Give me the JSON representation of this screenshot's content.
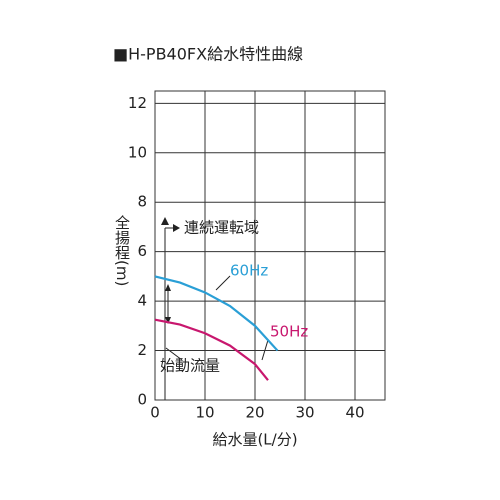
{
  "chart_data": {
    "type": "line",
    "title": "■H-PB40FX給水特性曲線",
    "x_label": "給水量(L/分)",
    "y_label": "全揚程(m)",
    "xlim": [
      0,
      46
    ],
    "xticks": [
      0,
      10,
      20,
      30,
      40
    ],
    "ylim": [
      0,
      12.5
    ],
    "yticks": [
      0,
      2,
      4,
      6,
      8,
      10,
      12
    ],
    "grid": true,
    "series": [
      {
        "name": "60Hz",
        "color": "#2a9fd6",
        "x": [
          0,
          5,
          10,
          15,
          20,
          24.5
        ],
        "values": [
          5.0,
          4.75,
          4.35,
          3.8,
          3.0,
          2.0
        ]
      },
      {
        "name": "50Hz",
        "color": "#c8176e",
        "x": [
          0,
          5,
          10,
          15,
          20,
          22.6
        ],
        "values": [
          3.25,
          3.05,
          2.7,
          2.2,
          1.45,
          0.8
        ]
      }
    ],
    "annotations": [
      "連続運転域",
      "始動流量"
    ]
  }
}
